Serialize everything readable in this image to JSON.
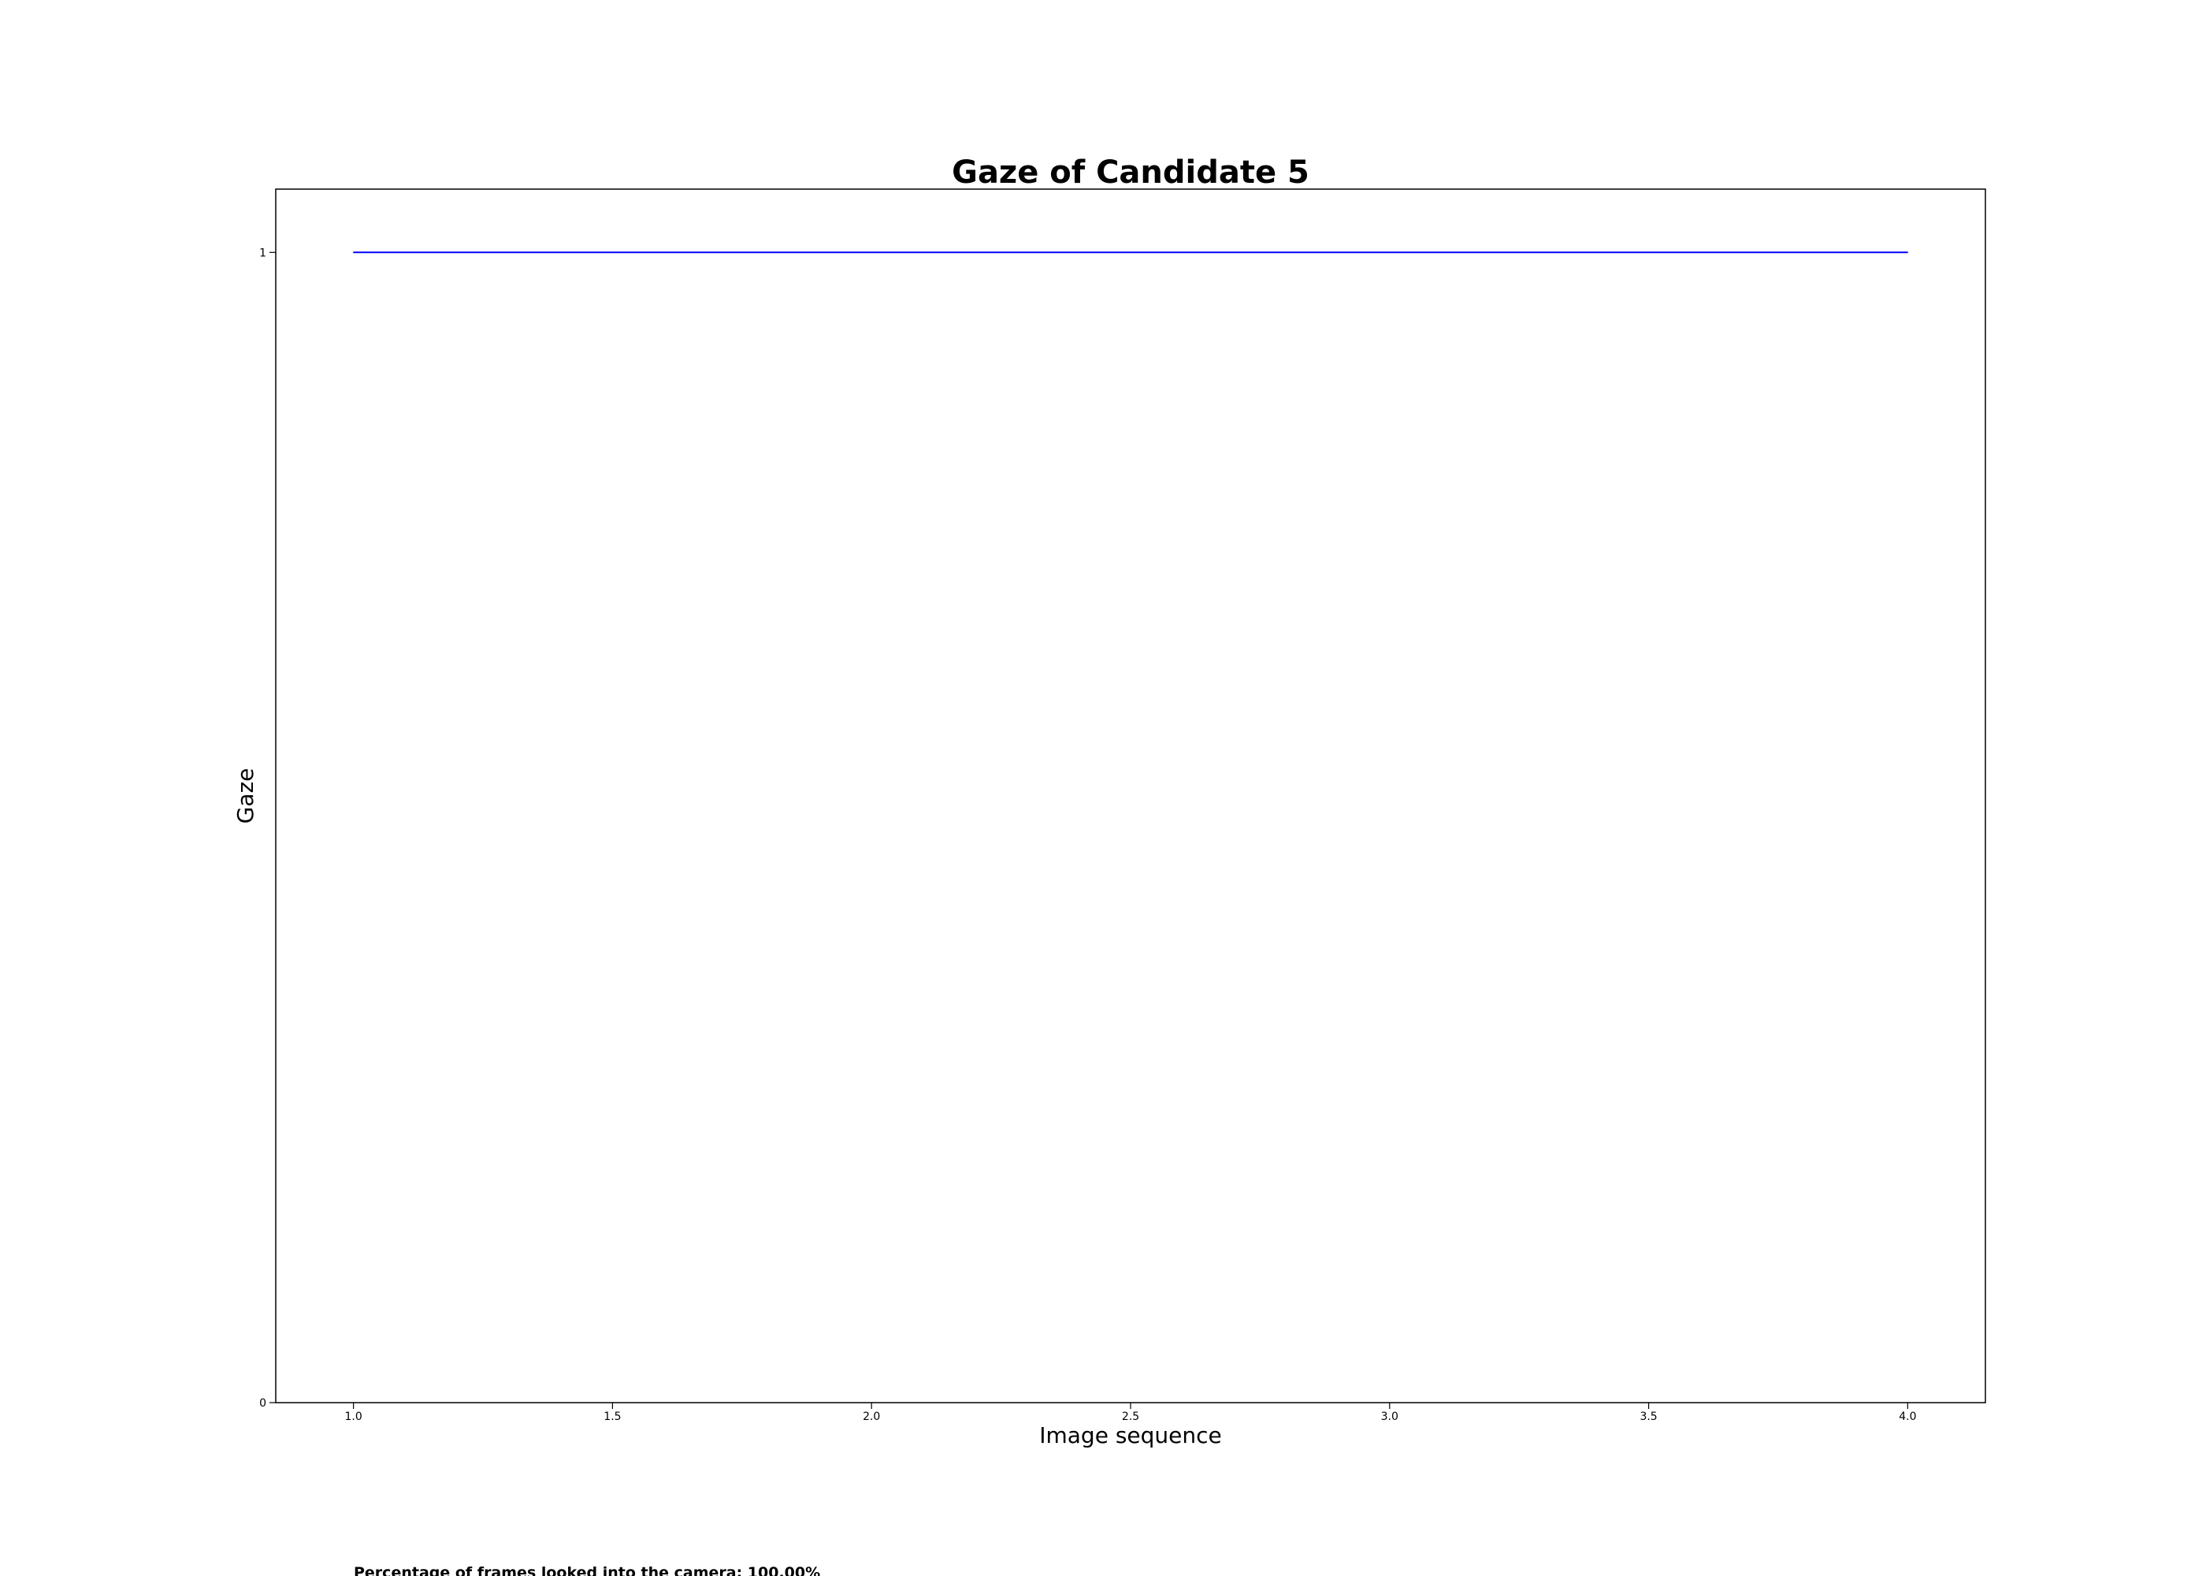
{
  "chart_data": {
    "type": "line",
    "title": "Gaze of Candidate 5",
    "xlabel": "Image sequence",
    "ylabel": "Gaze",
    "x": [
      1,
      2,
      3,
      4
    ],
    "series": [
      {
        "values": [
          1,
          1,
          1,
          1
        ],
        "color": "#0000ff"
      }
    ],
    "xlim": [
      0.85,
      4.15
    ],
    "ylim": [
      0,
      1.055
    ],
    "xticks": [
      1.0,
      1.5,
      2.0,
      2.5,
      3.0,
      3.5,
      4.0
    ],
    "xtick_labels": [
      "1.0",
      "1.5",
      "2.0",
      "2.5",
      "3.0",
      "3.5",
      "4.0"
    ],
    "yticks": [
      0,
      1
    ],
    "ytick_labels": [
      "0",
      "1"
    ],
    "grid": false,
    "annotation": "Percentage of frames looked into the camera: 100.00%"
  }
}
